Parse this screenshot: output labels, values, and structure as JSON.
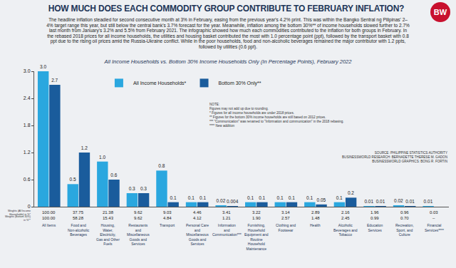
{
  "header": {
    "title": "HOW MUCH DOES EACH COMMODITY GROUP CONTRIBUTE TO FEBRUARY INFLATION?",
    "subtitle": "The headline inflation steadied for second consecutive month at 3% in February, easing from the previous year's 4.2% print. This was within the Bangko Sentral ng Pilipinas' 2–4% target range this year, but still below the central bank's 3.7% forecast for the year. Meanwhile, inflation among the bottom 30%** of income households slowed further to 2.7% last month from January's 3.2% and 5.5% from February 2021. The infographic showed how much each commodities contributed to the inflation for both groups in February. In the rebased 2018 prices for all income households, the utilities and housing basket contributed the most with 1.0 percentage point (ppt), followed by the transport basket with 0.8 ppt due to the rising oil prices amid the Russia-Ukraine conflict. While in the poor households, food and non-alcoholic beverages remained the major contributor with 1.2 ppts, followed by utilities (0.6 ppt).",
    "logo": "BW"
  },
  "chart_data": {
    "type": "bar",
    "title": "All Income Households vs. Bottom 30% Income Households Only (In Percentage Points), February 2022",
    "categories": [
      "All Items",
      "Food and Non-alcoholic Beverages",
      "Housing, Water, Electricity, Gas and Other Fuels",
      "Restaurants and Miscellaneous Goods and Services",
      "Transport",
      "Personal Care and Miscellaneous Goods and Services",
      "Information and Communication***",
      "Furnishing, Household Equipment and Routine Household Maintenance",
      "Clothing and Footwear",
      "Health",
      "Alcoholic Beverages and Tobacco",
      "Education Services",
      "Recreation, Sport, and Culture",
      "Financial Services****"
    ],
    "series": [
      {
        "name": "All Income Households*",
        "color": "#2aa7df",
        "values": [
          3.0,
          0.5,
          1.0,
          0.3,
          0.8,
          0.1,
          0.02,
          0.1,
          0.1,
          0.1,
          0.1,
          0.01,
          0.02,
          0.01
        ],
        "value_labels": [
          "3.0",
          "0.5",
          "1.0",
          "0.3",
          "0.8",
          "0.1",
          "0.02",
          "0.1",
          "0.1",
          "0.1",
          "0.1",
          "0.01",
          "0.02",
          "0.01"
        ],
        "weights_label": "Weights (All Income Households) in %*",
        "weights": [
          "100.00",
          "37.75",
          "21.38",
          "9.62",
          "9.03",
          "4.46",
          "3.41",
          "3.22",
          "3.14",
          "2.89",
          "2.16",
          "1.96",
          "0.96",
          "0.03"
        ]
      },
      {
        "name": "Bottom 30% Only**",
        "color": "#1a5c9c",
        "values": [
          2.7,
          1.2,
          0.6,
          0.3,
          0.1,
          0.1,
          0.004,
          0.1,
          0.1,
          0.05,
          0.2,
          0.01,
          0.01,
          null
        ],
        "value_labels": [
          "2.7",
          "1.2",
          "0.6",
          "0.3",
          "0.1",
          "0.1",
          "0.004",
          "0.1",
          "0.1",
          "0.05",
          "0.2",
          "0.01",
          "0.01",
          null
        ],
        "weights_label": "Weights (Bottom 30%) in %**",
        "weights": [
          "100.00",
          "58.28",
          "15.43",
          "9.62",
          "4.84",
          "4.12",
          "1.21",
          "1.90",
          "2.57",
          "1.48",
          "2.45",
          "0.99",
          "0.70",
          "–"
        ]
      }
    ],
    "ylim": [
      0,
      3
    ],
    "yticks": [
      0,
      0.6,
      1.2,
      1.8,
      2.4,
      {
        "value": 3,
        "label": "3.0"
      }
    ],
    "grid": false,
    "legend": "upper left",
    "data_labels": true,
    "notes": [
      "NOTE:",
      "Figures may not add up due to rounding.",
      "* Figures for all income households are under 2018 prices.",
      "** Figures for the bottom 30% income households are still based on 2012 prices.",
      "*** \"Communication\" was renamed to \"Information and communication\" in the 2018 rebasing.",
      "**** New addition"
    ],
    "source": [
      "SOURCE: PHILIPPINE STATISTICS AUTHORITY",
      "BUSINESSWORLD RESEARCH: BERNADETTE THERESE M. GADON",
      "BUSINESSWORLD GRAPHICS: BONG R. FORTIN"
    ]
  }
}
